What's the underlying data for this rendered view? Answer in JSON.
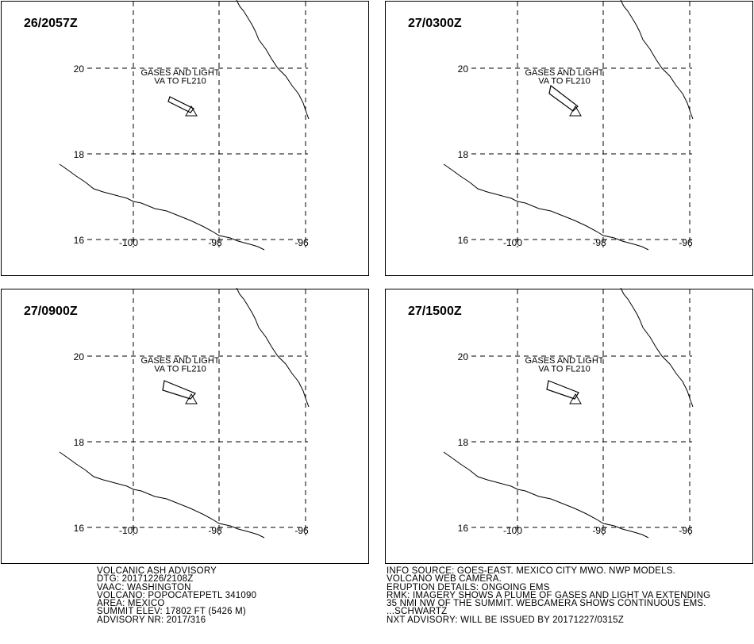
{
  "panels": [
    {
      "time": "26/2057Z",
      "annotation": [
        "GASES AND LIGHT",
        "VA TO FL210"
      ]
    },
    {
      "time": "27/0300Z",
      "annotation": [
        "GASES AND LIGHT",
        "VA TO FL210"
      ]
    },
    {
      "time": "27/0900Z",
      "annotation": [
        "GASES AND LIGHT",
        "VA TO FL210"
      ]
    },
    {
      "time": "27/1500Z",
      "annotation": [
        "GASES AND LIGHT",
        "VA TO FL210"
      ]
    }
  ],
  "grid_labels": {
    "lat": [
      "20",
      "18",
      "16"
    ],
    "lon": [
      "-100",
      "-98",
      "-96"
    ]
  },
  "advisory_left": [
    "VOLCANIC ASH ADVISORY",
    "DTG: 20171226/2108Z",
    "VAAC: WASHINGTON",
    "VOLCANO: POPOCATEPETL 341090",
    "AREA: MEXICO",
    "SUMMIT ELEV: 17802 FT (5426 M)",
    "ADVISORY NR: 2017/316"
  ],
  "advisory_right": [
    "INFO SOURCE: GOES-EAST. MEXICO CITY MWO. NWP MODELS.",
    "VOLCANO WEB CAMERA.",
    "ERUPTION DETAILS: ONGOING EMS",
    "RMK: IMAGERY SHOWS A PLUME OF GASES AND LIGHT VA EXTENDING",
    "35 NMI NW OF THE SUMMIT. WEBCAMERA SHOWS CONTINUOUS EMS.",
    "...SCHWARTZ",
    "NXT ADVISORY: WILL BE ISSUED BY 20171227/0315Z"
  ]
}
